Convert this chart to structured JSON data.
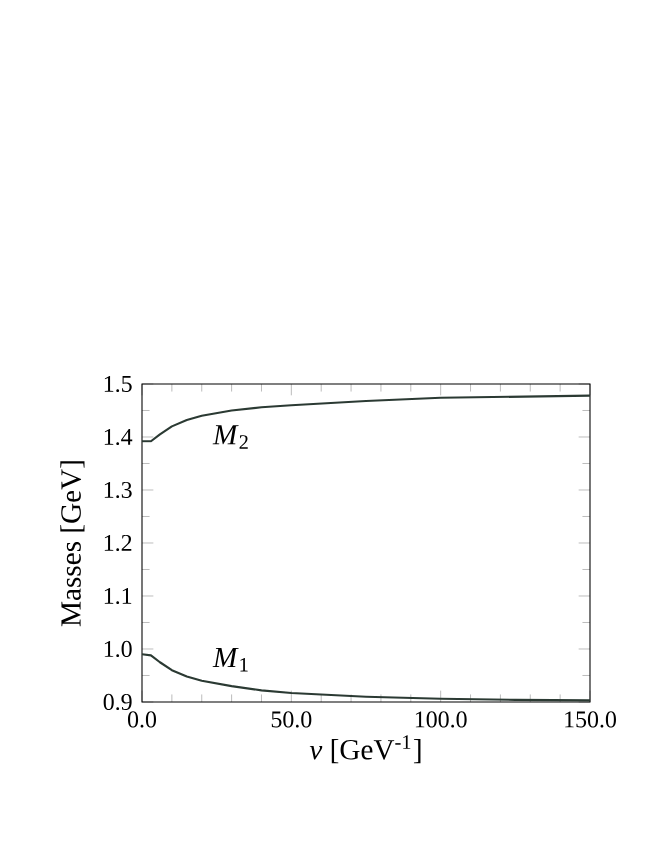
{
  "chart_data": {
    "type": "line",
    "xlabel": "*v* [GeV$^{-1}$]",
    "ylabel": "Masses [GeV]",
    "xlim": [
      0,
      150
    ],
    "ylim": [
      0.9,
      1.5
    ],
    "xticks": [
      {
        "value": 0,
        "label": "0.0"
      },
      {
        "value": 50,
        "label": "50.0"
      },
      {
        "value": 100,
        "label": "100.0"
      },
      {
        "value": 150,
        "label": "150.0"
      }
    ],
    "yticks": [
      {
        "value": 0.9,
        "label": "0.9"
      },
      {
        "value": 1.0,
        "label": "1.0"
      },
      {
        "value": 1.1,
        "label": "1.1"
      },
      {
        "value": 1.2,
        "label": "1.2"
      },
      {
        "value": 1.3,
        "label": "1.3"
      },
      {
        "value": 1.4,
        "label": "1.4"
      },
      {
        "value": 1.5,
        "label": "1.5"
      }
    ],
    "x": [
      0,
      3,
      6,
      10,
      15,
      20,
      30,
      40,
      50,
      75,
      100,
      125,
      150
    ],
    "series": [
      {
        "name": "*M*$_{2}$",
        "color": "#2b3a33",
        "values": [
          1.392,
          1.392,
          1.405,
          1.42,
          1.432,
          1.44,
          1.45,
          1.456,
          1.46,
          1.468,
          1.474,
          1.476,
          1.478
        ]
      },
      {
        "name": "*M*$_{1}$",
        "color": "#2b3a33",
        "values": [
          0.99,
          0.988,
          0.975,
          0.96,
          0.948,
          0.94,
          0.93,
          0.922,
          0.917,
          0.91,
          0.906,
          0.904,
          0.903
        ]
      }
    ],
    "grid": false,
    "legend": false,
    "marker": "none",
    "line_style": "solid"
  }
}
